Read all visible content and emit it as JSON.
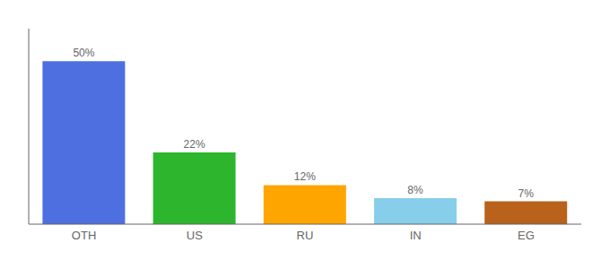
{
  "chart_data": {
    "type": "bar",
    "categories": [
      "OTH",
      "US",
      "RU",
      "IN",
      "EG"
    ],
    "values": [
      50,
      22,
      12,
      8,
      7
    ],
    "value_labels": [
      "50%",
      "22%",
      "12%",
      "8%",
      "7%"
    ],
    "colors": [
      "#4d6fe0",
      "#2db52d",
      "#ffa500",
      "#87ceeb",
      "#b8621b"
    ],
    "ylim": [
      0,
      60
    ],
    "data_labels": true,
    "tick_labels": "x",
    "grid": false
  }
}
